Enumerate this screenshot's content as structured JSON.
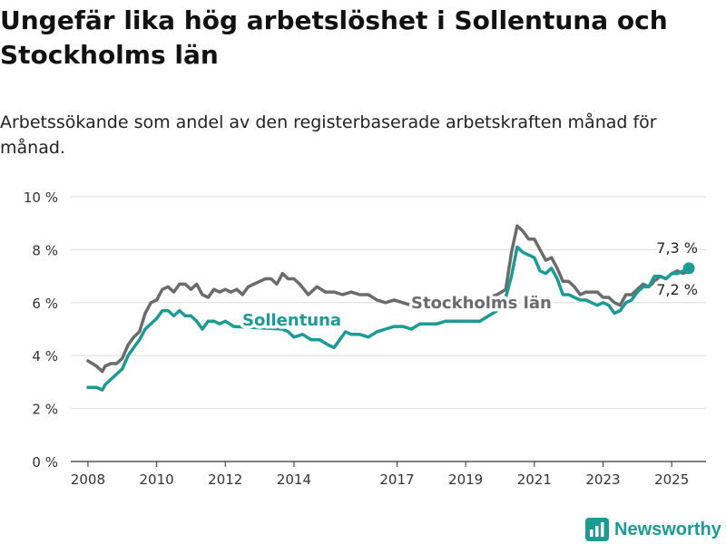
{
  "title": "Ungefär lika hög arbetslöshet i Sollentuna och Stockholms län",
  "subtitle": "Arbetssökande som andel av den registerbaserade arbetskraften månad för månad.",
  "brand": {
    "name": "Newsworthy",
    "color": "#1a9c95"
  },
  "chart_data": {
    "type": "line",
    "title": "",
    "xlabel": "",
    "ylabel": "",
    "x_ticks": [
      "2008",
      "2010",
      "2012",
      "2014",
      "2017",
      "2019",
      "2021",
      "2023",
      "2025"
    ],
    "y_ticks": [
      "0 %",
      "2 %",
      "4 %",
      "6 %",
      "8 %",
      "10 %"
    ],
    "ylim": [
      0,
      10
    ],
    "xlim": [
      "2007-07",
      "2026-01"
    ],
    "grid": true,
    "legend": "inline labels",
    "series": [
      {
        "name": "Stockholms län",
        "color": "#6b6b6b",
        "end_label": "7,2 %",
        "points": [
          [
            "2008-01",
            3.8
          ],
          [
            "2008-04",
            3.6
          ],
          [
            "2008-06",
            3.4
          ],
          [
            "2008-07",
            3.6
          ],
          [
            "2008-09",
            3.7
          ],
          [
            "2008-11",
            3.7
          ],
          [
            "2009-01",
            3.9
          ],
          [
            "2009-03",
            4.4
          ],
          [
            "2009-05",
            4.7
          ],
          [
            "2009-07",
            4.9
          ],
          [
            "2009-09",
            5.6
          ],
          [
            "2009-11",
            6.0
          ],
          [
            "2010-01",
            6.1
          ],
          [
            "2010-03",
            6.5
          ],
          [
            "2010-05",
            6.6
          ],
          [
            "2010-07",
            6.4
          ],
          [
            "2010-09",
            6.7
          ],
          [
            "2010-11",
            6.7
          ],
          [
            "2011-01",
            6.5
          ],
          [
            "2011-03",
            6.7
          ],
          [
            "2011-05",
            6.3
          ],
          [
            "2011-07",
            6.2
          ],
          [
            "2011-09",
            6.5
          ],
          [
            "2011-11",
            6.4
          ],
          [
            "2012-01",
            6.5
          ],
          [
            "2012-03",
            6.4
          ],
          [
            "2012-05",
            6.5
          ],
          [
            "2012-07",
            6.3
          ],
          [
            "2012-09",
            6.6
          ],
          [
            "2012-11",
            6.7
          ],
          [
            "2013-01",
            6.8
          ],
          [
            "2013-03",
            6.9
          ],
          [
            "2013-05",
            6.9
          ],
          [
            "2013-07",
            6.7
          ],
          [
            "2013-09",
            7.1
          ],
          [
            "2013-11",
            6.9
          ],
          [
            "2014-01",
            6.9
          ],
          [
            "2014-03",
            6.7
          ],
          [
            "2014-06",
            6.3
          ],
          [
            "2014-09",
            6.6
          ],
          [
            "2014-12",
            6.4
          ],
          [
            "2015-03",
            6.4
          ],
          [
            "2015-06",
            6.3
          ],
          [
            "2015-09",
            6.4
          ],
          [
            "2015-12",
            6.3
          ],
          [
            "2016-03",
            6.3
          ],
          [
            "2016-06",
            6.1
          ],
          [
            "2016-09",
            6.0
          ],
          [
            "2016-12",
            6.1
          ],
          [
            "2017-03",
            6.0
          ],
          [
            "2017-06",
            5.9
          ],
          [
            "2017-09",
            5.9
          ],
          [
            "2017-12",
            5.8
          ],
          [
            "2018-03",
            5.8
          ],
          [
            "2018-06",
            5.8
          ],
          [
            "2018-09",
            5.9
          ],
          [
            "2018-12",
            6.0
          ],
          [
            "2019-03",
            6.0
          ],
          [
            "2019-06",
            6.1
          ],
          [
            "2019-09",
            6.2
          ],
          [
            "2019-12",
            6.3
          ],
          [
            "2020-03",
            6.5
          ],
          [
            "2020-05",
            7.9
          ],
          [
            "2020-07",
            8.9
          ],
          [
            "2020-09",
            8.7
          ],
          [
            "2020-11",
            8.4
          ],
          [
            "2021-01",
            8.4
          ],
          [
            "2021-03",
            8.0
          ],
          [
            "2021-05",
            7.6
          ],
          [
            "2021-07",
            7.7
          ],
          [
            "2021-09",
            7.3
          ],
          [
            "2021-11",
            6.8
          ],
          [
            "2022-01",
            6.8
          ],
          [
            "2022-03",
            6.6
          ],
          [
            "2022-05",
            6.3
          ],
          [
            "2022-07",
            6.4
          ],
          [
            "2022-09",
            6.4
          ],
          [
            "2022-11",
            6.4
          ],
          [
            "2023-01",
            6.2
          ],
          [
            "2023-03",
            6.2
          ],
          [
            "2023-05",
            6.0
          ],
          [
            "2023-07",
            5.9
          ],
          [
            "2023-09",
            6.3
          ],
          [
            "2023-11",
            6.3
          ],
          [
            "2024-01",
            6.5
          ],
          [
            "2024-03",
            6.7
          ],
          [
            "2024-05",
            6.6
          ],
          [
            "2024-07",
            6.8
          ],
          [
            "2024-09",
            7.0
          ],
          [
            "2024-11",
            6.9
          ],
          [
            "2025-01",
            7.1
          ],
          [
            "2025-03",
            7.2
          ],
          [
            "2025-05",
            7.1
          ],
          [
            "2025-07",
            7.2
          ]
        ]
      },
      {
        "name": "Sollentuna",
        "color": "#1a9c95",
        "end_label": "7,3 %",
        "points": [
          [
            "2008-01",
            2.8
          ],
          [
            "2008-04",
            2.8
          ],
          [
            "2008-06",
            2.7
          ],
          [
            "2008-07",
            2.9
          ],
          [
            "2008-09",
            3.1
          ],
          [
            "2008-11",
            3.3
          ],
          [
            "2009-01",
            3.5
          ],
          [
            "2009-03",
            4.0
          ],
          [
            "2009-05",
            4.3
          ],
          [
            "2009-07",
            4.6
          ],
          [
            "2009-09",
            5.0
          ],
          [
            "2009-11",
            5.2
          ],
          [
            "2010-01",
            5.4
          ],
          [
            "2010-03",
            5.7
          ],
          [
            "2010-05",
            5.7
          ],
          [
            "2010-07",
            5.5
          ],
          [
            "2010-09",
            5.7
          ],
          [
            "2010-11",
            5.5
          ],
          [
            "2011-01",
            5.5
          ],
          [
            "2011-03",
            5.3
          ],
          [
            "2011-05",
            5.0
          ],
          [
            "2011-07",
            5.3
          ],
          [
            "2011-09",
            5.3
          ],
          [
            "2011-11",
            5.2
          ],
          [
            "2012-01",
            5.3
          ],
          [
            "2012-04",
            5.1
          ],
          [
            "2013-09",
            5.0
          ],
          [
            "2013-11",
            4.9
          ],
          [
            "2014-01",
            4.7
          ],
          [
            "2014-04",
            4.8
          ],
          [
            "2014-07",
            4.6
          ],
          [
            "2014-10",
            4.6
          ],
          [
            "2015-01",
            4.4
          ],
          [
            "2015-03",
            4.3
          ],
          [
            "2015-05",
            4.6
          ],
          [
            "2015-07",
            4.9
          ],
          [
            "2015-09",
            4.8
          ],
          [
            "2015-12",
            4.8
          ],
          [
            "2016-03",
            4.7
          ],
          [
            "2016-06",
            4.9
          ],
          [
            "2016-09",
            5.0
          ],
          [
            "2016-12",
            5.1
          ],
          [
            "2017-03",
            5.1
          ],
          [
            "2017-06",
            5.0
          ],
          [
            "2017-09",
            5.2
          ],
          [
            "2017-12",
            5.2
          ],
          [
            "2018-03",
            5.2
          ],
          [
            "2018-06",
            5.3
          ],
          [
            "2018-09",
            5.3
          ],
          [
            "2018-12",
            5.3
          ],
          [
            "2019-03",
            5.3
          ],
          [
            "2019-06",
            5.3
          ],
          [
            "2019-09",
            5.5
          ],
          [
            "2019-12",
            5.7
          ],
          [
            "2020-03",
            6.2
          ],
          [
            "2020-05",
            7.0
          ],
          [
            "2020-07",
            8.1
          ],
          [
            "2020-09",
            7.9
          ],
          [
            "2020-11",
            7.8
          ],
          [
            "2021-01",
            7.7
          ],
          [
            "2021-03",
            7.2
          ],
          [
            "2021-05",
            7.1
          ],
          [
            "2021-07",
            7.3
          ],
          [
            "2021-09",
            6.9
          ],
          [
            "2021-11",
            6.3
          ],
          [
            "2022-01",
            6.3
          ],
          [
            "2022-03",
            6.2
          ],
          [
            "2022-05",
            6.1
          ],
          [
            "2022-07",
            6.1
          ],
          [
            "2022-09",
            6.0
          ],
          [
            "2022-11",
            5.9
          ],
          [
            "2023-01",
            6.0
          ],
          [
            "2023-03",
            5.9
          ],
          [
            "2023-05",
            5.6
          ],
          [
            "2023-07",
            5.7
          ],
          [
            "2023-09",
            6.0
          ],
          [
            "2023-11",
            6.1
          ],
          [
            "2024-01",
            6.4
          ],
          [
            "2024-03",
            6.6
          ],
          [
            "2024-05",
            6.6
          ],
          [
            "2024-07",
            7.0
          ],
          [
            "2024-09",
            7.0
          ],
          [
            "2024-11",
            6.9
          ],
          [
            "2025-01",
            7.1
          ],
          [
            "2025-03",
            7.1
          ],
          [
            "2025-05",
            7.2
          ],
          [
            "2025-07",
            7.3
          ]
        ]
      }
    ]
  }
}
